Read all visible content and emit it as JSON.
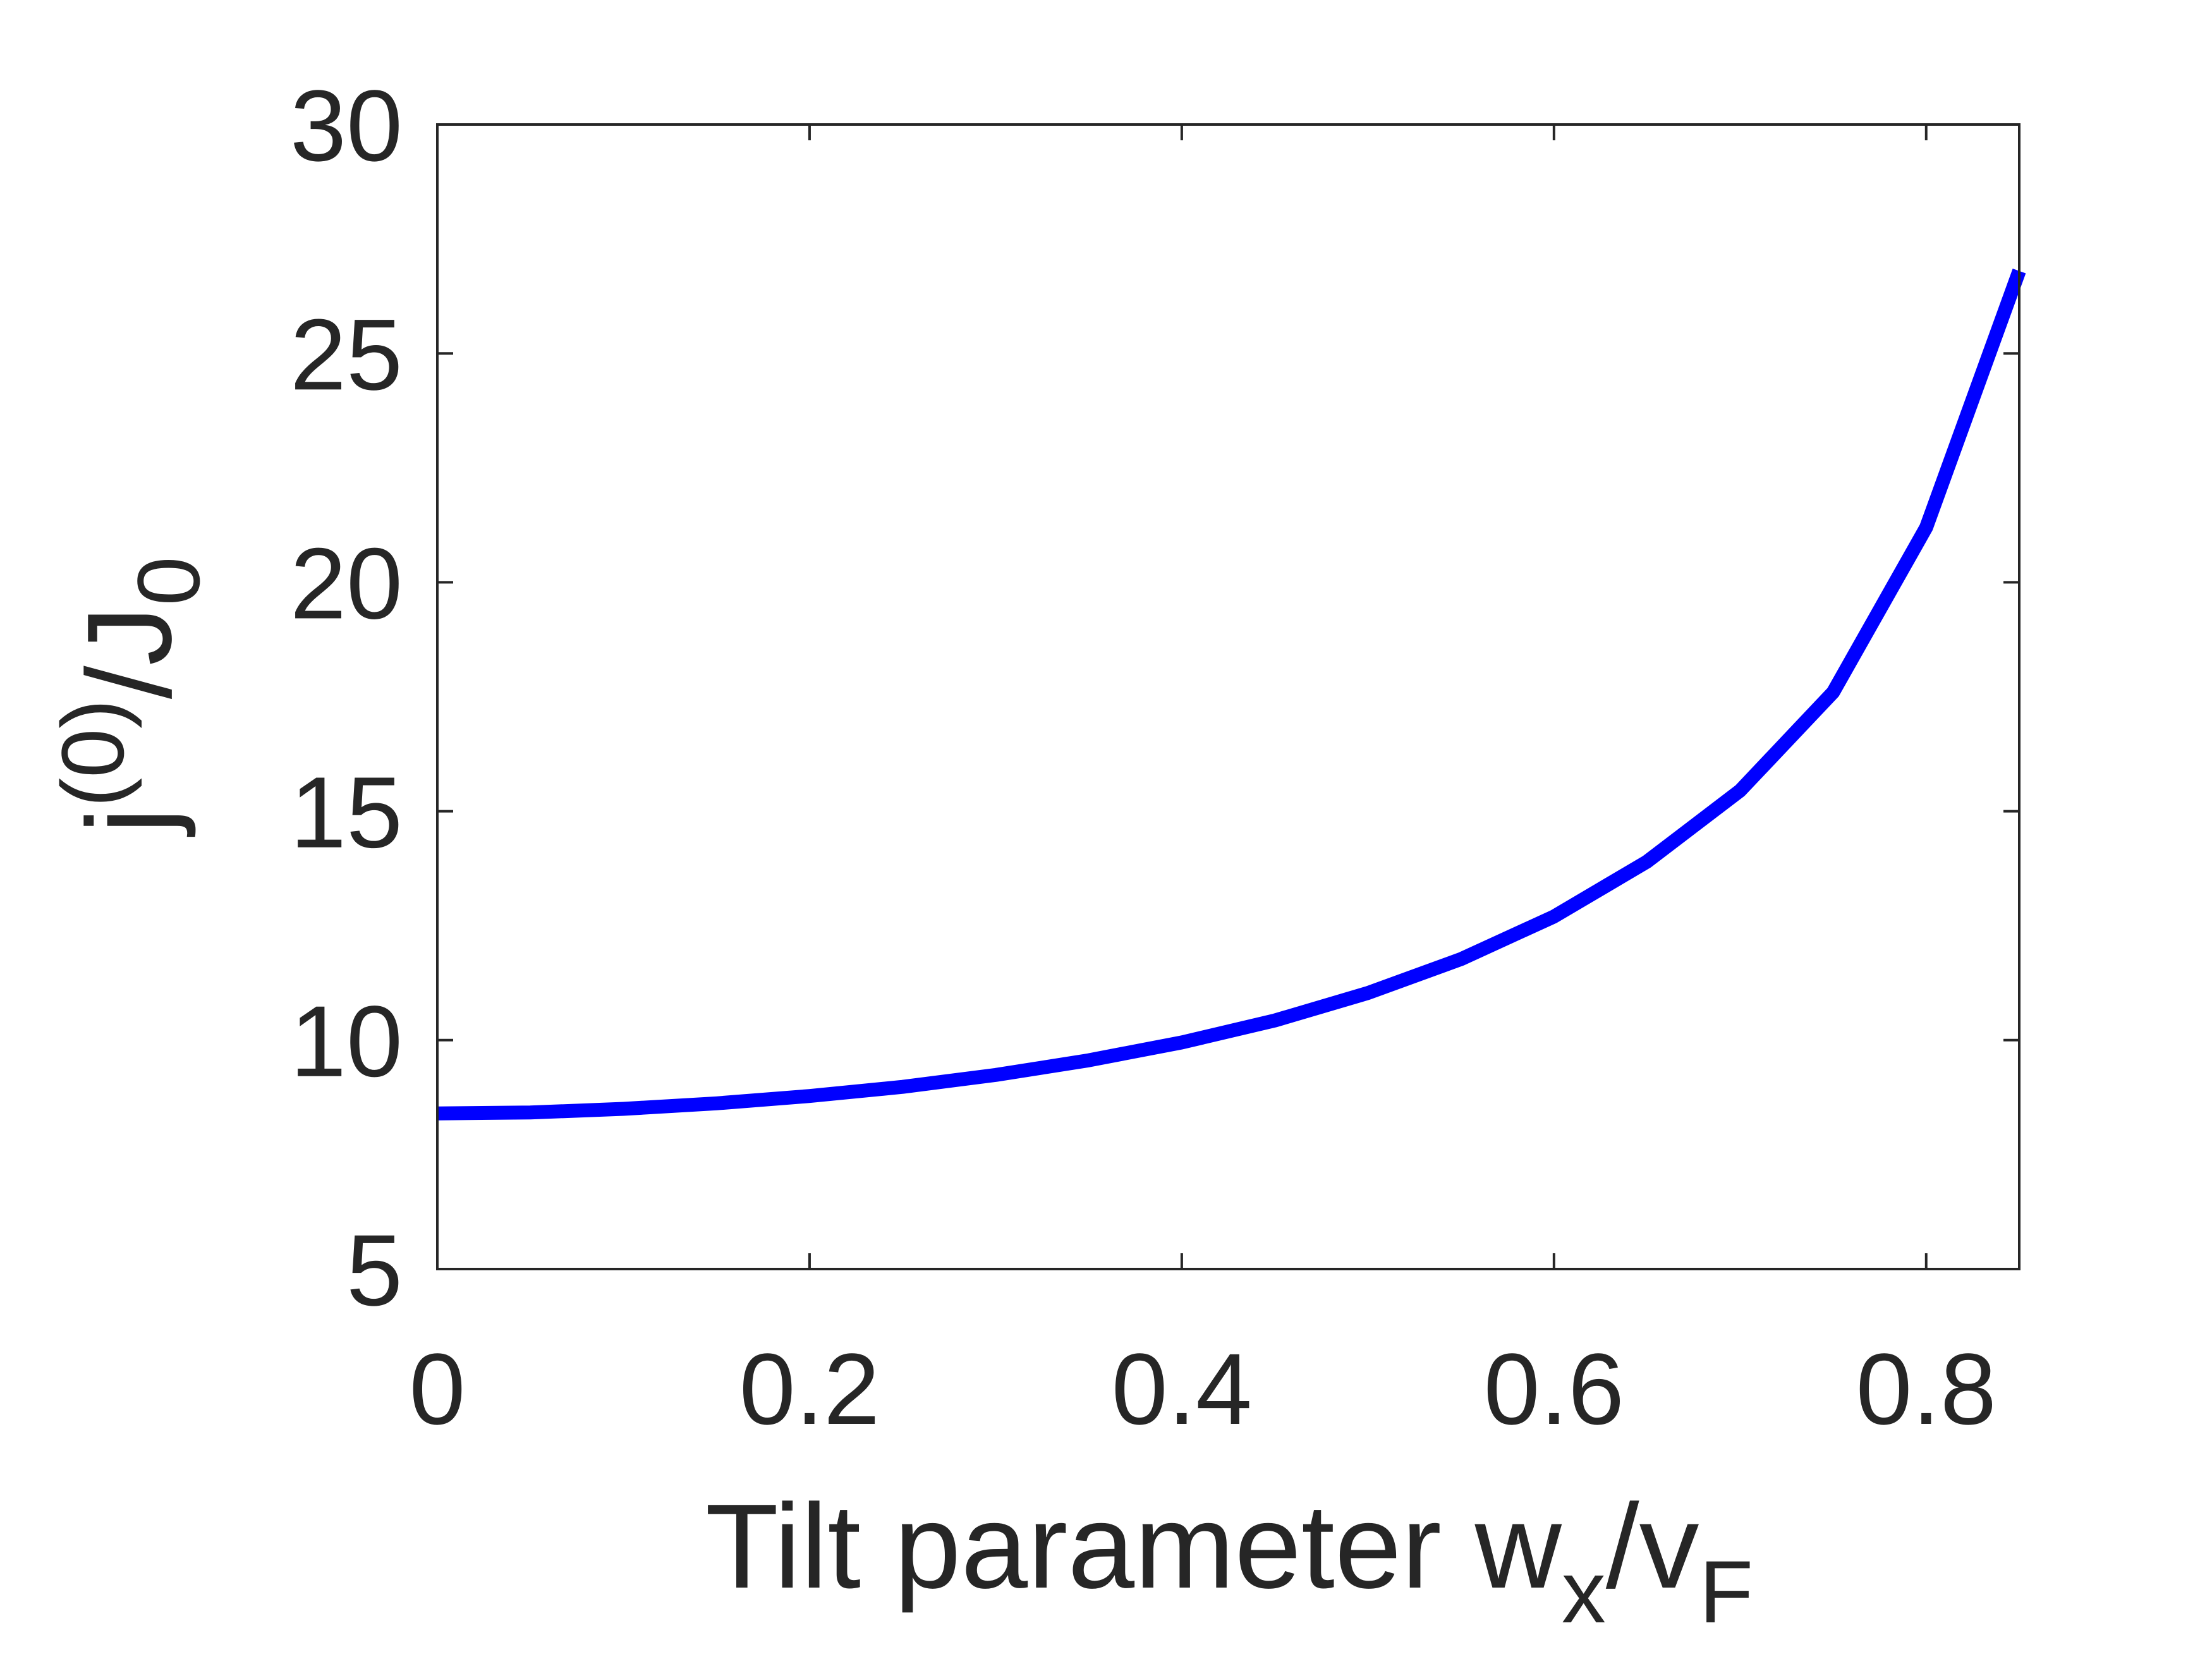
{
  "chart_data": {
    "type": "line",
    "title": "",
    "xlabel": {
      "prefix": "Tilt parameter w",
      "sub1": "x",
      "mid": "/v",
      "sub2": "F"
    },
    "ylabel": {
      "base": "j",
      "sup": "(0)",
      "mid": "/J",
      "sub": "0"
    },
    "xlim": [
      0,
      0.85
    ],
    "ylim": [
      5,
      30
    ],
    "xticks": [
      "0",
      "0.2",
      "0.4",
      "0.6",
      "0.8"
    ],
    "yticks": [
      "5",
      "10",
      "15",
      "20",
      "25",
      "30"
    ],
    "grid": false,
    "legend": "none",
    "series": [
      {
        "color": "#0000ff",
        "x": [
          0,
          0.05,
          0.1,
          0.15,
          0.2,
          0.25,
          0.3,
          0.35,
          0.4,
          0.45,
          0.5,
          0.55,
          0.6,
          0.65,
          0.7,
          0.75,
          0.8,
          0.85
        ],
        "y": [
          8.4,
          8.42,
          8.5,
          8.62,
          8.78,
          8.98,
          9.24,
          9.56,
          9.95,
          10.43,
          11.03,
          11.77,
          12.7,
          13.9,
          15.45,
          17.6,
          21.2,
          26.8
        ]
      }
    ]
  }
}
